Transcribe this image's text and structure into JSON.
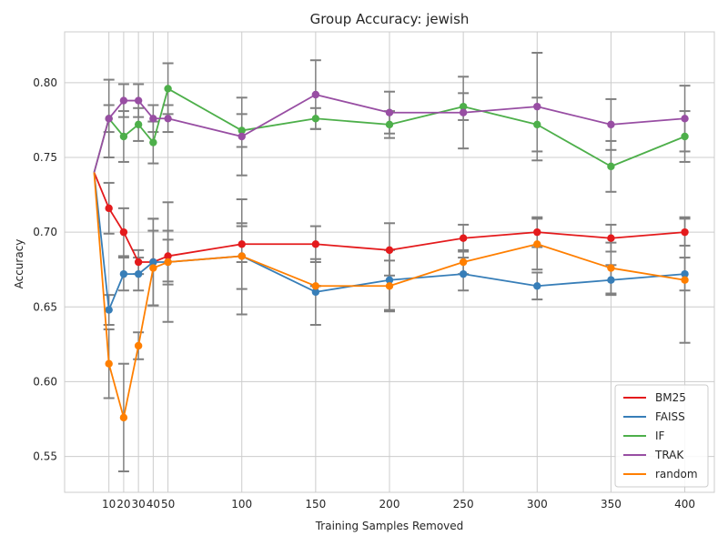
{
  "chart_data": {
    "type": "line",
    "title": "Group Accuracy: jewish",
    "xlabel": "Training Samples Removed",
    "ylabel": "Accuracy",
    "x": [
      0,
      10,
      20,
      30,
      40,
      50,
      100,
      150,
      200,
      250,
      300,
      350,
      400
    ],
    "x_ticks": [
      10,
      20,
      30,
      40,
      50,
      100,
      150,
      200,
      250,
      300,
      350,
      400
    ],
    "y_ticks": [
      "0.55",
      "0.60",
      "0.65",
      "0.70",
      "0.75",
      "0.80"
    ],
    "xlim": [
      -20,
      420
    ],
    "ylim": [
      0.526,
      0.834
    ],
    "grid": true,
    "legend_position": "bottom-right",
    "series": [
      {
        "name": "BM25",
        "color": "#e41a1c",
        "values": [
          0.74,
          0.716,
          0.7,
          0.68,
          0.68,
          0.684,
          0.692,
          0.692,
          0.688,
          0.696,
          0.7,
          0.696,
          0.7
        ],
        "err_low": [
          null,
          0.699,
          0.684,
          0.672,
          0.651,
          0.667,
          0.68,
          0.68,
          0.671,
          0.687,
          0.69,
          0.687,
          0.691
        ],
        "err_high": [
          null,
          0.733,
          0.716,
          0.688,
          0.709,
          0.701,
          0.704,
          0.704,
          0.706,
          0.705,
          0.71,
          0.705,
          0.709
        ]
      },
      {
        "name": "FAISS",
        "color": "#377eb8",
        "values": [
          0.74,
          0.648,
          0.672,
          0.672,
          0.68,
          0.68,
          0.684,
          0.66,
          0.668,
          0.672,
          0.664,
          0.668,
          0.672
        ],
        "err_low": [
          null,
          0.638,
          0.661,
          0.661,
          0.651,
          0.665,
          0.662,
          0.638,
          0.648,
          0.661,
          0.655,
          0.658,
          0.661
        ],
        "err_high": [
          null,
          0.658,
          0.683,
          0.683,
          0.709,
          0.695,
          0.706,
          0.682,
          0.688,
          0.683,
          0.673,
          0.678,
          0.683
        ]
      },
      {
        "name": "IF",
        "color": "#4daf4a",
        "values": [
          0.74,
          0.776,
          0.764,
          0.772,
          0.76,
          0.796,
          0.768,
          0.776,
          0.772,
          0.784,
          0.772,
          0.744,
          0.764
        ],
        "err_low": [
          null,
          0.767,
          0.747,
          0.761,
          0.746,
          0.779,
          0.757,
          0.769,
          0.763,
          0.775,
          0.754,
          0.727,
          0.747
        ],
        "err_high": [
          null,
          0.785,
          0.781,
          0.783,
          0.774,
          0.813,
          0.779,
          0.783,
          0.781,
          0.793,
          0.79,
          0.761,
          0.781
        ]
      },
      {
        "name": "TRAK",
        "color": "#984ea3",
        "values": [
          0.74,
          0.776,
          0.788,
          0.788,
          0.776,
          0.776,
          0.764,
          0.792,
          0.78,
          0.78,
          0.784,
          0.772,
          0.776
        ],
        "err_low": [
          null,
          0.75,
          0.777,
          0.777,
          0.767,
          0.767,
          0.738,
          0.769,
          0.766,
          0.756,
          0.748,
          0.755,
          0.754
        ],
        "err_high": [
          null,
          0.802,
          0.799,
          0.799,
          0.785,
          0.785,
          0.79,
          0.815,
          0.794,
          0.804,
          0.82,
          0.789,
          0.798
        ]
      },
      {
        "name": "random",
        "color": "#ff7f00",
        "values": [
          0.74,
          0.612,
          0.576,
          0.624,
          0.676,
          0.68,
          0.684,
          0.664,
          0.664,
          0.68,
          0.692,
          0.676,
          0.668
        ],
        "err_low": [
          null,
          0.589,
          0.54,
          0.615,
          0.651,
          0.64,
          0.645,
          0.664,
          0.647,
          0.672,
          0.675,
          0.659,
          0.626
        ],
        "err_high": [
          null,
          0.635,
          0.612,
          0.633,
          0.701,
          0.72,
          0.722,
          0.664,
          0.681,
          0.688,
          0.709,
          0.693,
          0.71
        ]
      }
    ]
  }
}
